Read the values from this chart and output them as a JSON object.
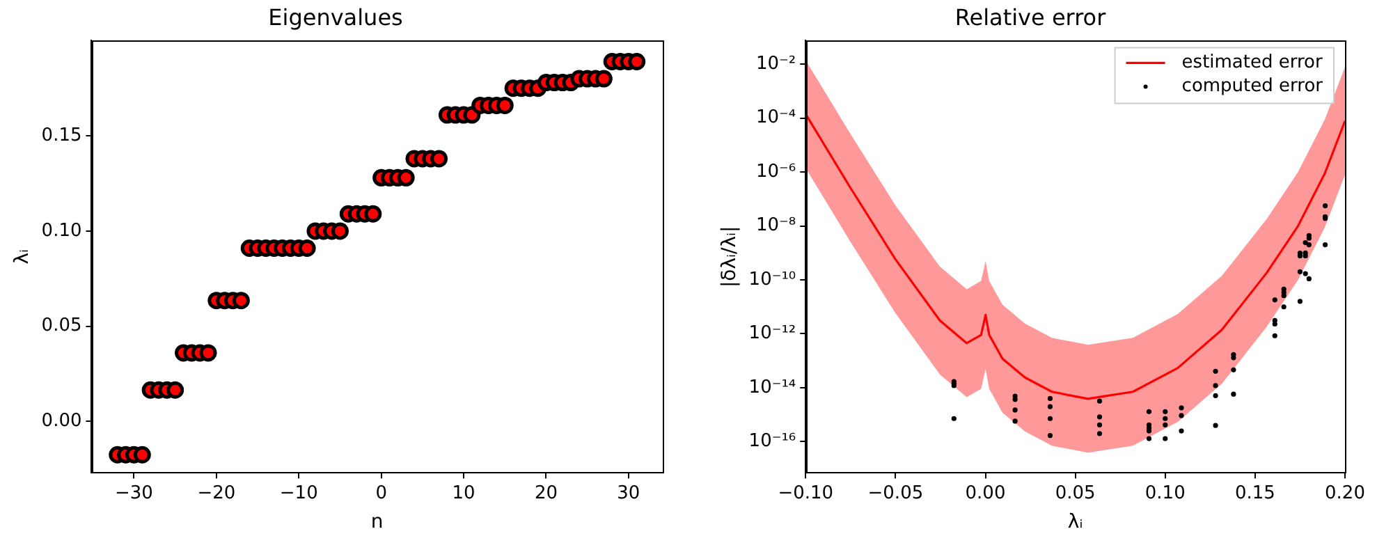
{
  "chart_data": [
    {
      "type": "scatter",
      "title": "Eigenvalues",
      "xlabel": "n",
      "ylabel": "λᵢ",
      "marker": "circle",
      "grid": false,
      "xlim": [
        -35.15,
        34.15
      ],
      "ylim": [
        -0.027,
        0.2
      ],
      "xticks": [
        {
          "value": -30,
          "label": "−30"
        },
        {
          "value": -20,
          "label": "−20"
        },
        {
          "value": -10,
          "label": "−10"
        },
        0,
        10,
        20,
        30
      ],
      "yticks": [
        {
          "value": 0,
          "label": "0.00"
        },
        {
          "value": 0.05,
          "label": "0.05"
        },
        {
          "value": 0.1,
          "label": "0.10"
        },
        {
          "value": 0.15,
          "label": "0.15"
        }
      ],
      "series": [
        {
          "color": "#ff0000",
          "x": [
            -32,
            -31,
            -30,
            -29,
            -28,
            -27,
            -26,
            -25,
            -24,
            -23,
            -22,
            -21,
            -20,
            -19,
            -18,
            -17,
            -16,
            -15,
            -14,
            -13,
            -12,
            -11,
            -10,
            -9,
            -8,
            -7,
            -6,
            -5,
            -4,
            -3,
            -2,
            -1,
            0,
            1,
            2,
            3,
            4,
            5,
            6,
            7,
            8,
            9,
            10,
            11,
            12,
            13,
            14,
            15,
            16,
            17,
            18,
            19,
            20,
            21,
            22,
            23,
            24,
            25,
            26,
            27,
            28,
            29,
            30,
            31
          ],
          "values": [
            -0.0175,
            -0.0175,
            -0.0175,
            -0.0175,
            0.0165,
            0.0165,
            0.0165,
            0.0165,
            0.036,
            0.036,
            0.036,
            0.036,
            0.0635,
            0.0635,
            0.0635,
            0.0635,
            0.091,
            0.091,
            0.091,
            0.091,
            0.091,
            0.091,
            0.091,
            0.091,
            0.1,
            0.1,
            0.1,
            0.1,
            0.109,
            0.109,
            0.109,
            0.109,
            0.128,
            0.128,
            0.128,
            0.128,
            0.138,
            0.138,
            0.138,
            0.138,
            0.161,
            0.161,
            0.161,
            0.161,
            0.166,
            0.166,
            0.166,
            0.166,
            0.175,
            0.175,
            0.175,
            0.175,
            0.178,
            0.178,
            0.178,
            0.178,
            0.18,
            0.18,
            0.18,
            0.18,
            0.189,
            0.189,
            0.189,
            0.189
          ]
        }
      ]
    },
    {
      "type": "line",
      "title": "Relative error",
      "xlabel": "λᵢ",
      "ylabel": "|δλᵢ/λᵢ|",
      "log": "y",
      "grid": false,
      "legend": "top right",
      "xlim": [
        -0.1,
        0.2
      ],
      "ylim": [
        7.2e-18,
        0.074
      ],
      "xticks": [
        {
          "value": -0.1,
          "label": "−0.10"
        },
        {
          "value": -0.05,
          "label": "−0.05"
        },
        {
          "value": 0,
          "label": "0.00"
        },
        {
          "value": 0.05,
          "label": "0.05"
        },
        {
          "value": 0.1,
          "label": "0.10"
        },
        {
          "value": 0.15,
          "label": "0.15"
        },
        {
          "value": 0.2,
          "label": "0.20"
        }
      ],
      "yticks": [
        {
          "value": 0.01,
          "label": "10⁻²"
        },
        {
          "value": 0.0001,
          "label": "10⁻⁴"
        },
        {
          "value": 1e-06,
          "label": "10⁻⁶"
        },
        {
          "value": 1e-08,
          "label": "10⁻⁸"
        },
        {
          "value": 1e-10,
          "label": "10⁻¹⁰"
        },
        {
          "value": 1e-12,
          "label": "10⁻¹²"
        },
        {
          "value": 1e-14,
          "label": "10⁻¹⁴"
        },
        {
          "value": 1e-16,
          "label": "10⁻¹⁶"
        }
      ],
      "series": [
        {
          "name": "estimated error",
          "color": "#ff0000",
          "line_style": "solid",
          "marker": "none",
          "x": [
            -0.1,
            -0.0751,
            -0.0502,
            -0.0253,
            -0.0104,
            -0.0024,
            0.0001,
            0.0021,
            0.0095,
            0.022,
            0.037,
            0.057,
            0.082,
            0.107,
            0.1315,
            0.1564,
            0.1739,
            0.1888,
            0.2
          ],
          "values": [
            0.00014,
            2.6e-07,
            6e-10,
            3.1e-12,
            4.5e-13,
            9.1e-13,
            5e-12,
            9.1e-13,
            1.2e-13,
            2.4e-14,
            7.1e-15,
            3.9e-15,
            7.1e-15,
            5.4e-14,
            1.4e-12,
            1.8e-10,
            1e-08,
            8.9e-07,
            7.8e-05
          ],
          "lower": [
            1.4e-06,
            2.6e-09,
            6e-12,
            3.1e-14,
            4.5e-15,
            9.1e-15,
            5e-14,
            9.1e-15,
            1.2e-15,
            2.4e-16,
            7.1e-17,
            3.9e-17,
            7.1e-17,
            5.4e-16,
            1.4e-14,
            1.8e-12,
            1e-10,
            8.9e-09,
            7.8e-07
          ],
          "upper": [
            0.014,
            2.6e-05,
            6e-08,
            3.1e-10,
            4.5e-11,
            9.1e-11,
            5e-10,
            9.1e-11,
            1.2e-11,
            2.4e-12,
            7.1e-13,
            3.9e-13,
            7.1e-13,
            5.4e-12,
            1.4e-10,
            1.8e-08,
            1e-06,
            8.9e-05,
            0.0078
          ]
        },
        {
          "name": "computed error",
          "type": "scatter",
          "color": "#000000",
          "marker": "circle",
          "x": [
            -0.0175,
            -0.0175,
            -0.0175,
            -0.0175,
            0.0165,
            0.0165,
            0.0165,
            0.0165,
            0.036,
            0.036,
            0.036,
            0.036,
            0.0635,
            0.0635,
            0.0635,
            0.0635,
            0.091,
            0.091,
            0.091,
            0.091,
            0.091,
            0.1,
            0.1,
            0.1,
            0.1,
            0.109,
            0.109,
            0.109,
            0.128,
            0.128,
            0.128,
            0.128,
            0.138,
            0.138,
            0.138,
            0.138,
            0.161,
            0.161,
            0.161,
            0.161,
            0.166,
            0.166,
            0.166,
            0.166,
            0.175,
            0.175,
            0.175,
            0.175,
            0.178,
            0.178,
            0.178,
            0.178,
            0.18,
            0.18,
            0.18,
            0.18,
            0.189,
            0.189,
            0.189,
            0.189
          ],
          "values": [
            1.7e-14,
            1.4e-14,
            1.2e-14,
            7.2e-16,
            4.9e-15,
            3.7e-15,
            1.5e-15,
            5.8e-16,
            4e-15,
            2e-15,
            7.2e-16,
            1.7e-16,
            3.2e-15,
            8.3e-16,
            4.2e-16,
            2e-16,
            1.3e-15,
            4.2e-16,
            3.2e-16,
            2.5e-16,
            1.3e-16,
            1.3e-15,
            7.2e-16,
            4.2e-16,
            1.3e-16,
            1.8e-15,
            9.3e-16,
            2.5e-16,
            4.1e-14,
            1.2e-14,
            5.1e-15,
            4e-16,
            1.7e-13,
            1.3e-13,
            4.6e-14,
            5.8e-15,
            1.8e-11,
            3.1e-12,
            2.3e-12,
            8.5e-13,
            4.5e-11,
            3.4e-11,
            2.6e-11,
            1e-11,
            9.8e-10,
            7.8e-10,
            2e-10,
            1.6e-11,
            2.4e-09,
            1e-09,
            7.8e-10,
            1.7e-10,
            4.4e-09,
            3.5e-09,
            2e-09,
            1.1e-10,
            5.6e-08,
            2.2e-08,
            1.9e-08,
            2e-09
          ]
        }
      ]
    }
  ]
}
